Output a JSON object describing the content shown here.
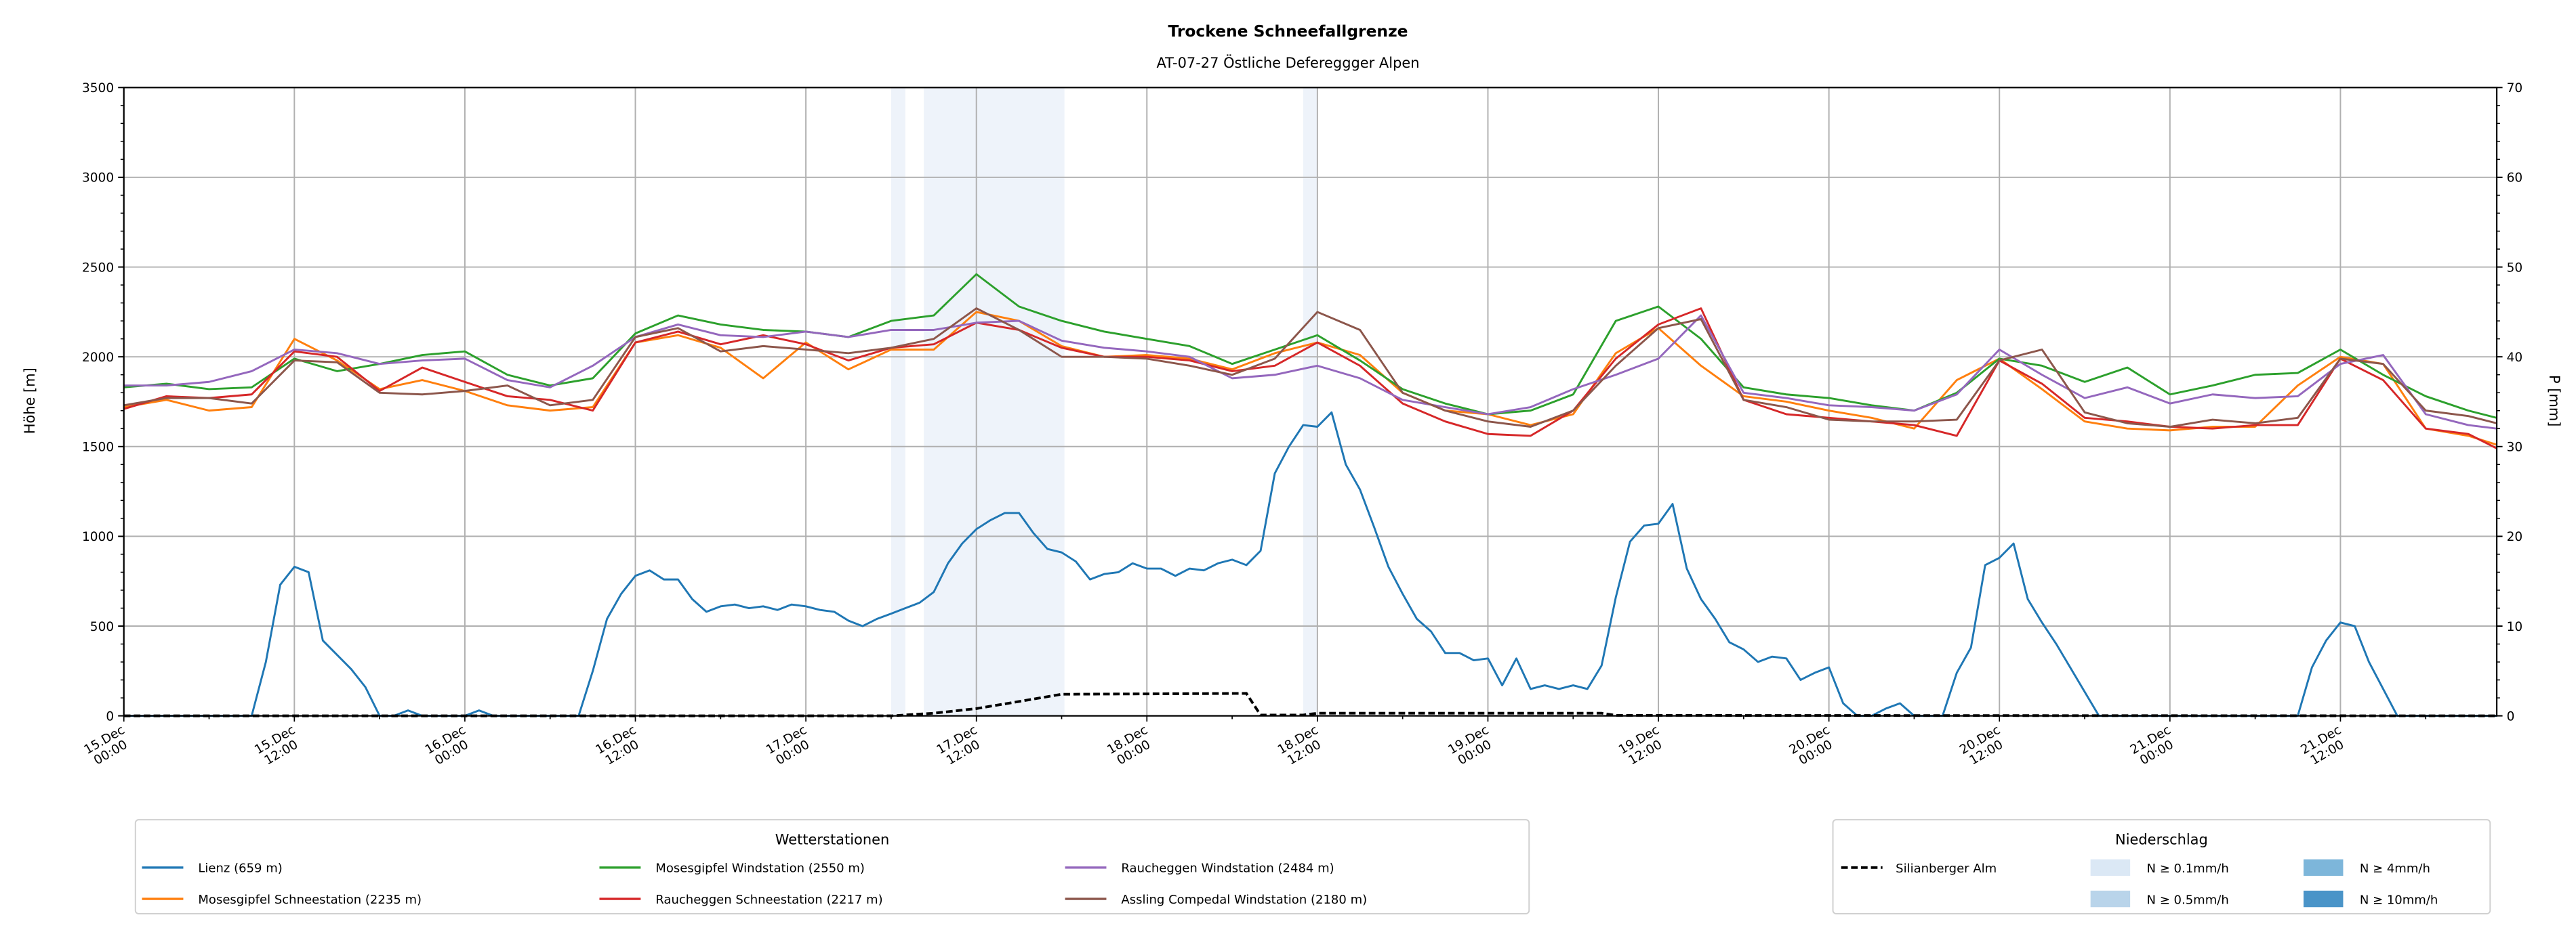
{
  "chart_data": {
    "type": "line",
    "title": "Trockene Schneefallgrenze",
    "subtitle": "AT-07-27 Östliche Defereggger Alpen",
    "ylabel": "Höhe [m]",
    "y2label": "P [mm]",
    "xlim_hours": [
      0,
      167
    ],
    "ylim": [
      0,
      3500
    ],
    "y2lim": [
      0,
      70
    ],
    "yticks": [
      0,
      500,
      1000,
      1500,
      2000,
      2500,
      3000,
      3500
    ],
    "y2ticks": [
      0,
      10,
      20,
      30,
      40,
      50,
      60,
      70
    ],
    "grid": true,
    "xticks": [
      {
        "hour": 0,
        "label": [
          "15.Dec",
          "00:00"
        ]
      },
      {
        "hour": 12,
        "label": [
          "15.Dec",
          "12:00"
        ]
      },
      {
        "hour": 24,
        "label": [
          "16.Dec",
          "00:00"
        ]
      },
      {
        "hour": 36,
        "label": [
          "16.Dec",
          "12:00"
        ]
      },
      {
        "hour": 48,
        "label": [
          "17.Dec",
          "00:00"
        ]
      },
      {
        "hour": 60,
        "label": [
          "17.Dec",
          "12:00"
        ]
      },
      {
        "hour": 72,
        "label": [
          "18.Dec",
          "00:00"
        ]
      },
      {
        "hour": 84,
        "label": [
          "18.Dec",
          "12:00"
        ]
      },
      {
        "hour": 96,
        "label": [
          "19.Dec",
          "00:00"
        ]
      },
      {
        "hour": 108,
        "label": [
          "19.Dec",
          "12:00"
        ]
      },
      {
        "hour": 120,
        "label": [
          "20.Dec",
          "00:00"
        ]
      },
      {
        "hour": 132,
        "label": [
          "20.Dec",
          "12:00"
        ]
      },
      {
        "hour": 144,
        "label": [
          "21.Dec",
          "00:00"
        ]
      },
      {
        "hour": 156,
        "label": [
          "21.Dec",
          "12:00"
        ]
      }
    ],
    "hours": [
      0,
      3,
      6,
      9,
      12,
      15,
      18,
      21,
      24,
      27,
      30,
      33,
      36,
      39,
      42,
      45,
      48,
      51,
      54,
      57,
      60,
      63,
      66,
      69,
      72,
      75,
      78,
      81,
      84,
      87,
      90,
      93,
      96,
      99,
      102,
      105,
      108,
      111,
      114,
      117,
      120,
      123,
      126,
      129,
      132,
      135,
      138,
      141,
      144,
      147,
      150,
      153,
      156,
      159,
      162,
      165,
      167
    ],
    "series": [
      {
        "name": "Lienz (659 m)",
        "color": "#1f77b4",
        "points": [
          [
            0,
            0
          ],
          [
            9,
            0
          ],
          [
            10,
            300
          ],
          [
            11,
            730
          ],
          [
            12,
            830
          ],
          [
            13,
            800
          ],
          [
            14,
            420
          ],
          [
            16,
            260
          ],
          [
            17,
            160
          ],
          [
            18,
            0
          ],
          [
            19,
            0
          ],
          [
            20,
            30
          ],
          [
            21,
            0
          ],
          [
            24,
            0
          ],
          [
            25,
            30
          ],
          [
            26,
            0
          ],
          [
            32,
            0
          ],
          [
            33,
            250
          ],
          [
            34,
            540
          ],
          [
            35,
            680
          ],
          [
            36,
            780
          ],
          [
            37,
            810
          ],
          [
            38,
            760
          ],
          [
            39,
            760
          ],
          [
            40,
            650
          ],
          [
            41,
            580
          ],
          [
            42,
            610
          ],
          [
            43,
            620
          ],
          [
            44,
            600
          ],
          [
            45,
            610
          ],
          [
            46,
            590
          ],
          [
            47,
            620
          ],
          [
            48,
            610
          ],
          [
            49,
            590
          ],
          [
            50,
            580
          ],
          [
            51,
            530
          ],
          [
            52,
            500
          ],
          [
            53,
            540
          ],
          [
            54,
            570
          ],
          [
            55,
            600
          ],
          [
            56,
            630
          ],
          [
            57,
            690
          ],
          [
            58,
            850
          ],
          [
            59,
            960
          ],
          [
            60,
            1040
          ],
          [
            61,
            1090
          ],
          [
            62,
            1130
          ],
          [
            63,
            1130
          ],
          [
            64,
            1020
          ],
          [
            65,
            930
          ],
          [
            66,
            910
          ],
          [
            67,
            860
          ],
          [
            68,
            760
          ],
          [
            69,
            790
          ],
          [
            70,
            800
          ],
          [
            71,
            850
          ],
          [
            72,
            820
          ],
          [
            73,
            820
          ],
          [
            74,
            780
          ],
          [
            75,
            820
          ],
          [
            76,
            810
          ],
          [
            77,
            850
          ],
          [
            78,
            870
          ],
          [
            79,
            840
          ],
          [
            80,
            920
          ],
          [
            81,
            1350
          ],
          [
            82,
            1500
          ],
          [
            83,
            1620
          ],
          [
            84,
            1610
          ],
          [
            85,
            1690
          ],
          [
            86,
            1400
          ],
          [
            87,
            1260
          ],
          [
            88,
            1050
          ],
          [
            89,
            830
          ],
          [
            90,
            680
          ],
          [
            91,
            540
          ],
          [
            92,
            470
          ],
          [
            93,
            350
          ],
          [
            94,
            350
          ],
          [
            95,
            310
          ],
          [
            96,
            320
          ],
          [
            97,
            170
          ],
          [
            98,
            320
          ],
          [
            99,
            150
          ],
          [
            100,
            170
          ],
          [
            101,
            150
          ],
          [
            102,
            170
          ],
          [
            103,
            150
          ],
          [
            104,
            280
          ],
          [
            105,
            660
          ],
          [
            106,
            970
          ],
          [
            107,
            1060
          ],
          [
            108,
            1070
          ],
          [
            109,
            1180
          ],
          [
            110,
            820
          ],
          [
            111,
            650
          ],
          [
            112,
            540
          ],
          [
            113,
            410
          ],
          [
            114,
            370
          ],
          [
            115,
            300
          ],
          [
            116,
            330
          ],
          [
            117,
            320
          ],
          [
            118,
            200
          ],
          [
            119,
            240
          ],
          [
            120,
            270
          ],
          [
            121,
            70
          ],
          [
            122,
            0
          ],
          [
            123,
            0
          ],
          [
            124,
            40
          ],
          [
            125,
            70
          ],
          [
            126,
            0
          ],
          [
            128,
            0
          ],
          [
            129,
            240
          ],
          [
            130,
            380
          ],
          [
            131,
            840
          ],
          [
            132,
            880
          ],
          [
            133,
            960
          ],
          [
            134,
            650
          ],
          [
            135,
            520
          ],
          [
            136,
            400
          ],
          [
            139,
            0
          ],
          [
            153,
            0
          ],
          [
            154,
            270
          ],
          [
            155,
            420
          ],
          [
            156,
            520
          ],
          [
            157,
            500
          ],
          [
            158,
            300
          ],
          [
            160,
            0
          ],
          [
            167,
            0
          ]
        ]
      },
      {
        "name": "Mosesgipfel Schneestation (2235 m)",
        "color": "#ff7f0e",
        "values": [
          1720,
          1760,
          1700,
          1720,
          2100,
          1980,
          1820,
          1870,
          1810,
          1730,
          1700,
          1720,
          2080,
          2120,
          2050,
          1880,
          2080,
          1930,
          2040,
          2040,
          2250,
          2200,
          2060,
          2000,
          2010,
          1990,
          1930,
          2020,
          2080,
          2010,
          1800,
          1700,
          1680,
          1620,
          1680,
          2020,
          2160,
          1950,
          1780,
          1750,
          1700,
          1660,
          1600,
          1870,
          1990,
          1820,
          1640,
          1600,
          1590,
          1610,
          1610,
          1840,
          2000,
          1960,
          1600,
          1560,
          1510
        ]
      },
      {
        "name": "Mosesgipfel Windstation (2550 m)",
        "color": "#2ca02c",
        "values": [
          1830,
          1850,
          1820,
          1830,
          1990,
          1920,
          1960,
          2010,
          2030,
          1900,
          1840,
          1880,
          2130,
          2230,
          2180,
          2150,
          2140,
          2110,
          2200,
          2230,
          2460,
          2280,
          2200,
          2140,
          2100,
          2060,
          1960,
          2040,
          2120,
          1980,
          1820,
          1740,
          1680,
          1700,
          1790,
          2200,
          2280,
          2100,
          1830,
          1790,
          1770,
          1730,
          1700,
          1800,
          1990,
          1950,
          1860,
          1940,
          1790,
          1840,
          1900,
          1910,
          2040,
          1900,
          1780,
          1700,
          1660
        ]
      },
      {
        "name": "Raucheggen Schneestation (2217 m)",
        "color": "#d62728",
        "values": [
          1710,
          1780,
          1770,
          1790,
          2030,
          2000,
          1810,
          1940,
          1860,
          1780,
          1760,
          1700,
          2080,
          2140,
          2070,
          2120,
          2070,
          1980,
          2050,
          2070,
          2190,
          2150,
          2050,
          2000,
          2000,
          1980,
          1920,
          1950,
          2080,
          1950,
          1740,
          1640,
          1570,
          1560,
          1700,
          1990,
          2180,
          2270,
          1760,
          1680,
          1660,
          1640,
          1620,
          1560,
          1980,
          1850,
          1660,
          1640,
          1610,
          1600,
          1620,
          1620,
          1990,
          1870,
          1600,
          1570,
          1490
        ]
      },
      {
        "name": "Raucheggen Windstation (2484 m)",
        "color": "#9467bd",
        "values": [
          1840,
          1840,
          1860,
          1920,
          2040,
          2020,
          1960,
          1980,
          1990,
          1870,
          1830,
          1950,
          2110,
          2180,
          2120,
          2110,
          2140,
          2110,
          2150,
          2150,
          2190,
          2200,
          2090,
          2050,
          2030,
          2000,
          1880,
          1900,
          1950,
          1880,
          1760,
          1720,
          1680,
          1720,
          1820,
          1900,
          1990,
          2230,
          1800,
          1770,
          1730,
          1720,
          1700,
          1790,
          2040,
          1900,
          1770,
          1830,
          1740,
          1790,
          1770,
          1780,
          1960,
          2010,
          1680,
          1620,
          1600
        ]
      },
      {
        "name": "Assling Compedal Windstation (2180 m)",
        "color": "#8c564b",
        "values": [
          1730,
          1770,
          1770,
          1740,
          1980,
          1970,
          1800,
          1790,
          1810,
          1840,
          1730,
          1760,
          2110,
          2160,
          2030,
          2060,
          2040,
          2020,
          2050,
          2100,
          2270,
          2150,
          2000,
          2000,
          1990,
          1950,
          1900,
          1990,
          2250,
          2150,
          1800,
          1700,
          1640,
          1610,
          1700,
          1950,
          2160,
          2210,
          1760,
          1720,
          1650,
          1640,
          1640,
          1650,
          1980,
          2040,
          1690,
          1630,
          1610,
          1650,
          1630,
          1660,
          1990,
          1960,
          1700,
          1670,
          1630
        ]
      }
    ],
    "precipitation": {
      "name": "Silianberger Alm",
      "color": "#000000",
      "axis": "right",
      "points": [
        [
          0,
          0
        ],
        [
          54,
          0
        ],
        [
          57,
          0.3
        ],
        [
          60,
          0.8
        ],
        [
          63,
          1.6
        ],
        [
          66,
          2.4
        ],
        [
          79,
          2.5
        ],
        [
          80,
          0.1
        ],
        [
          83,
          0.1
        ],
        [
          84,
          0.3
        ],
        [
          104,
          0.3
        ],
        [
          105,
          0.05
        ],
        [
          167,
          0
        ]
      ]
    },
    "precip_bands": [
      {
        "start": 54,
        "end": 55,
        "class": "N ≥ 0.1mm/h"
      },
      {
        "start": 56.3,
        "end": 66.2,
        "class": "N ≥ 0.1mm/h"
      },
      {
        "start": 83,
        "end": 84,
        "class": "N ≥ 0.1mm/h"
      }
    ],
    "legend_stations": {
      "title": "Wetterstationen",
      "placement": "bottom-left"
    },
    "legend_precip": {
      "title": "Niederschlag",
      "placement": "bottom-right",
      "classes": [
        {
          "label": "N ≥ 0.1mm/h",
          "color": "#dbe8f5"
        },
        {
          "label": "N ≥ 0.5mm/h",
          "color": "#b9d4ea"
        },
        {
          "label": "N ≥ 4mm/h",
          "color": "#7db6da"
        },
        {
          "label": "N ≥ 10mm/h",
          "color": "#4a94c8"
        }
      ],
      "band_color": "#eef3fa"
    }
  }
}
